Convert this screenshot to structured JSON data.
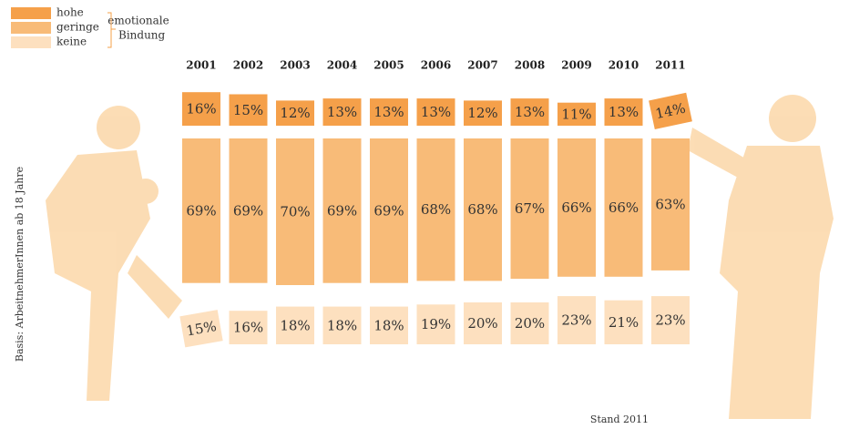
{
  "chart_data": {
    "type": "bar",
    "categories": [
      "2001",
      "2002",
      "2003",
      "2004",
      "2005",
      "2006",
      "2007",
      "2008",
      "2009",
      "2010",
      "2011"
    ],
    "series": [
      {
        "name": "hohe",
        "color": "#f5a04a",
        "values": [
          16,
          15,
          12,
          13,
          13,
          13,
          12,
          13,
          11,
          13,
          14
        ],
        "value_labels": [
          "16%",
          "15%",
          "12%",
          "13%",
          "13%",
          "13%",
          "12%",
          "13%",
          "11%",
          "13%",
          "14%"
        ]
      },
      {
        "name": "geringe",
        "color": "#f8bb78",
        "values": [
          69,
          69,
          70,
          69,
          69,
          68,
          68,
          67,
          66,
          66,
          63
        ],
        "value_labels": [
          "69%",
          "69%",
          "70%",
          "69%",
          "69%",
          "68%",
          "68%",
          "67%",
          "66%",
          "66%",
          "63%"
        ]
      },
      {
        "name": "keine",
        "color": "#fde0bf",
        "values": [
          15,
          16,
          18,
          18,
          18,
          19,
          20,
          20,
          23,
          21,
          23
        ],
        "value_labels": [
          "15%",
          "16%",
          "18%",
          "18%",
          "18%",
          "19%",
          "20%",
          "20%",
          "23%",
          "21%",
          "23%"
        ]
      }
    ],
    "legend_title": [
      "emotionale",
      "Bindung"
    ],
    "y_label": "Basis: ArbeitnehmerInnen ab 18 Jahre",
    "footnote": "Stand 2011"
  }
}
